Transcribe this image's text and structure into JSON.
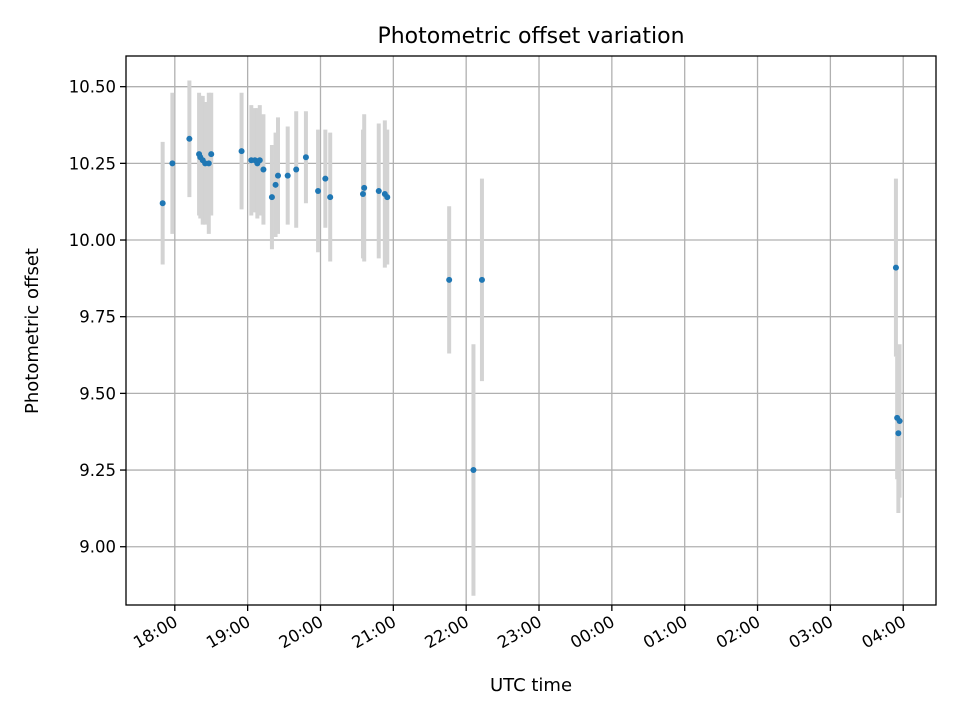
{
  "chart_data": {
    "type": "scatter",
    "title": "Photometric offset variation",
    "xlabel": "UTC time",
    "ylabel": "Photometric offset",
    "x_axis": {
      "unit": "UTC hours since 18:00 (day 1)",
      "min": -0.67,
      "max": 10.45,
      "ticks": [
        {
          "value": 0,
          "label": "18:00"
        },
        {
          "value": 1,
          "label": "19:00"
        },
        {
          "value": 2,
          "label": "20:00"
        },
        {
          "value": 3,
          "label": "21:00"
        },
        {
          "value": 4,
          "label": "22:00"
        },
        {
          "value": 5,
          "label": "23:00"
        },
        {
          "value": 6,
          "label": "00:00"
        },
        {
          "value": 7,
          "label": "01:00"
        },
        {
          "value": 8,
          "label": "02:00"
        },
        {
          "value": 9,
          "label": "03:00"
        },
        {
          "value": 10,
          "label": "04:00"
        }
      ]
    },
    "y_axis": {
      "min": 8.81,
      "max": 10.6,
      "ticks": [
        {
          "value": 9.0,
          "label": "9.00"
        },
        {
          "value": 9.25,
          "label": "9.25"
        },
        {
          "value": 9.5,
          "label": "9.50"
        },
        {
          "value": 9.75,
          "label": "9.75"
        },
        {
          "value": 10.0,
          "label": "10.00"
        },
        {
          "value": 10.25,
          "label": "10.25"
        },
        {
          "value": 10.5,
          "label": "10.50"
        }
      ]
    },
    "grid": true,
    "marker_color": "#1f77b4",
    "errorbar_color": "#d3d3d3",
    "points": [
      {
        "time": "17:50",
        "y": 10.12,
        "err": 0.2
      },
      {
        "time": "17:58",
        "y": 10.25,
        "err": 0.23
      },
      {
        "time": "18:12",
        "y": 10.33,
        "err": 0.19
      },
      {
        "time": "18:20",
        "y": 10.28,
        "err": 0.2
      },
      {
        "time": "18:21",
        "y": 10.27,
        "err": 0.2
      },
      {
        "time": "18:23",
        "y": 10.26,
        "err": 0.21
      },
      {
        "time": "18:25",
        "y": 10.25,
        "err": 0.2
      },
      {
        "time": "18:28",
        "y": 10.25,
        "err": 0.23
      },
      {
        "time": "18:30",
        "y": 10.28,
        "err": 0.2
      },
      {
        "time": "18:55",
        "y": 10.29,
        "err": 0.19
      },
      {
        "time": "19:03",
        "y": 10.26,
        "err": 0.18
      },
      {
        "time": "19:06",
        "y": 10.26,
        "err": 0.17
      },
      {
        "time": "19:08",
        "y": 10.25,
        "err": 0.18
      },
      {
        "time": "19:10",
        "y": 10.26,
        "err": 0.18
      },
      {
        "time": "19:13",
        "y": 10.23,
        "err": 0.18
      },
      {
        "time": "19:20",
        "y": 10.14,
        "err": 0.17
      },
      {
        "time": "19:23",
        "y": 10.18,
        "err": 0.17
      },
      {
        "time": "19:25",
        "y": 10.21,
        "err": 0.19
      },
      {
        "time": "19:33",
        "y": 10.21,
        "err": 0.16
      },
      {
        "time": "19:40",
        "y": 10.23,
        "err": 0.19
      },
      {
        "time": "19:48",
        "y": 10.27,
        "err": 0.15
      },
      {
        "time": "19:58",
        "y": 10.16,
        "err": 0.2
      },
      {
        "time": "20:04",
        "y": 10.2,
        "err": 0.16
      },
      {
        "time": "20:08",
        "y": 10.14,
        "err": 0.21
      },
      {
        "time": "20:35",
        "y": 10.15,
        "err": 0.21
      },
      {
        "time": "20:36",
        "y": 10.17,
        "err": 0.24
      },
      {
        "time": "20:48",
        "y": 10.16,
        "err": 0.22
      },
      {
        "time": "20:53",
        "y": 10.15,
        "err": 0.24
      },
      {
        "time": "20:55",
        "y": 10.14,
        "err": 0.22
      },
      {
        "time": "21:46",
        "y": 9.87,
        "err": 0.24
      },
      {
        "time": "22:06",
        "y": 9.25,
        "err": 0.41
      },
      {
        "time": "22:13",
        "y": 9.87,
        "err": 0.33
      },
      {
        "time": "03:54",
        "y": 9.91,
        "err": 0.29
      },
      {
        "time": "03:55",
        "y": 9.42,
        "err": 0.2
      },
      {
        "time": "03:57",
        "y": 9.41,
        "err": 0.25
      },
      {
        "time": "03:56",
        "y": 9.37,
        "err": 0.26
      }
    ]
  }
}
